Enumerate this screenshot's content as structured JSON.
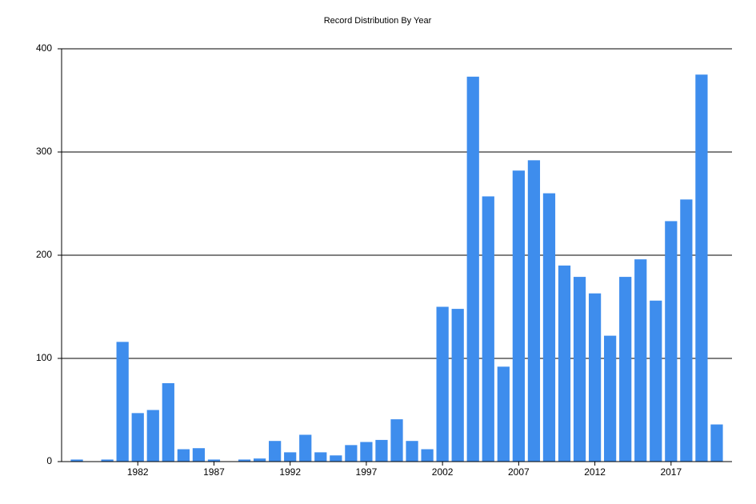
{
  "chart_data": {
    "type": "bar",
    "title": "Record Distribution By Year",
    "x": [
      1978,
      1980,
      1981,
      1982,
      1983,
      1984,
      1985,
      1986,
      1987,
      1989,
      1990,
      1991,
      1992,
      1993,
      1994,
      1995,
      1996,
      1997,
      1998,
      1999,
      2000,
      2001,
      2002,
      2003,
      2004,
      2005,
      2006,
      2007,
      2008,
      2009,
      2010,
      2011,
      2012,
      2013,
      2014,
      2015,
      2016,
      2017,
      2018,
      2019,
      2020
    ],
    "values": [
      2,
      2,
      116,
      47,
      50,
      76,
      12,
      13,
      2,
      2,
      3,
      20,
      9,
      26,
      9,
      6,
      16,
      19,
      21,
      41,
      20,
      12,
      150,
      148,
      373,
      257,
      92,
      282,
      292,
      260,
      190,
      179,
      163,
      122,
      179,
      196,
      156,
      233,
      254,
      375,
      36
    ],
    "color": "#3e8ded",
    "xlim": [
      1977,
      2021
    ],
    "xticks": [
      1982,
      1987,
      1992,
      1997,
      2002,
      2007,
      2012,
      2017
    ],
    "ylim": [
      0,
      400
    ],
    "yticks": [
      0,
      100,
      200,
      300,
      400
    ],
    "grid": true
  }
}
